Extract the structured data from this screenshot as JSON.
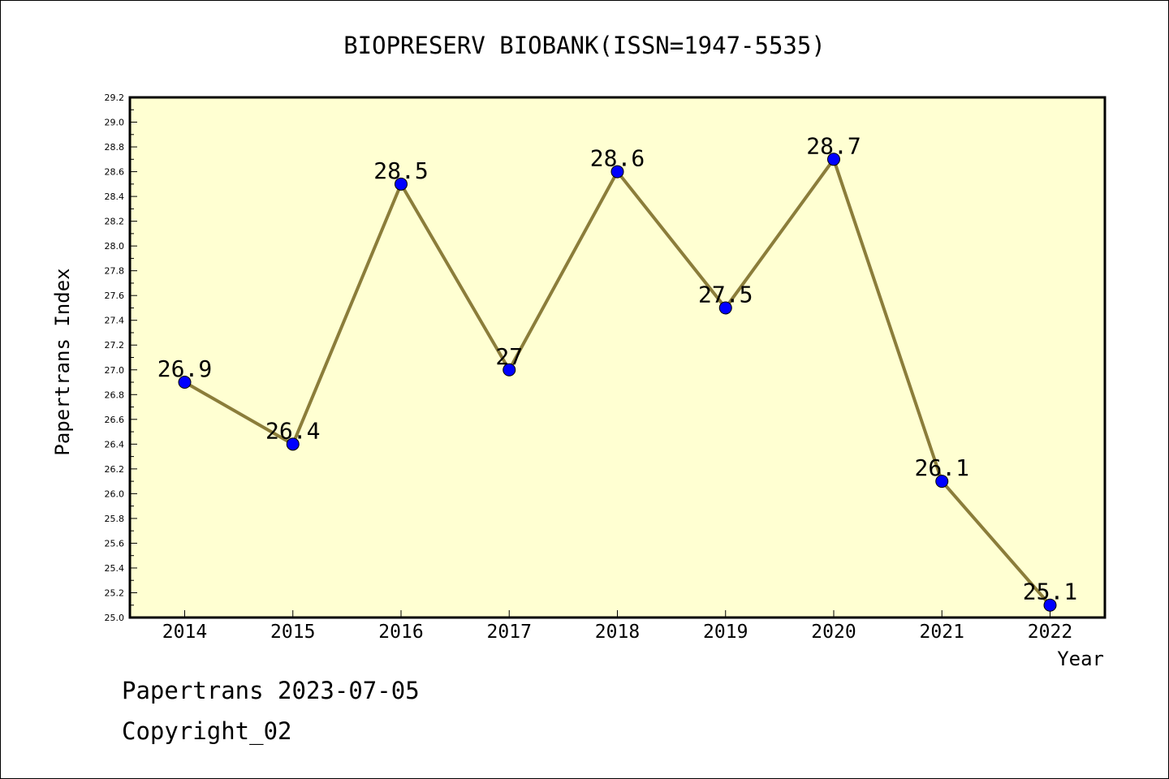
{
  "chart_data": {
    "type": "line",
    "title": "BIOPRESERV BIOBANK(ISSN=1947-5535)",
    "xlabel": "Year",
    "ylabel": "Papertrans Index",
    "x": [
      "2014",
      "2015",
      "2016",
      "2017",
      "2018",
      "2019",
      "2020",
      "2021",
      "2022"
    ],
    "values": [
      26.9,
      26.4,
      28.5,
      27.0,
      28.6,
      27.5,
      28.7,
      26.1,
      25.1
    ],
    "data_labels": [
      "26.9",
      "26.4",
      "28.5",
      "27",
      "28.6",
      "27.5",
      "28.7",
      "26.1",
      "25.1"
    ],
    "ylim": [
      25.0,
      29.2
    ],
    "yticks": [
      "25.0",
      "25.2",
      "25.4",
      "25.6",
      "25.8",
      "26.0",
      "26.2",
      "26.4",
      "26.6",
      "26.8",
      "27.0",
      "27.2",
      "27.4",
      "27.6",
      "27.8",
      "28.0",
      "28.2",
      "28.4",
      "28.6",
      "28.8",
      "29.0",
      "29.2"
    ],
    "grid": false,
    "colors": {
      "plot_background": "#ffffd2",
      "line": "#8b7d3a",
      "marker": "#0000ff"
    }
  },
  "footer": {
    "line1": "Papertrans 2023-07-05",
    "line2": "Copyright_02"
  }
}
